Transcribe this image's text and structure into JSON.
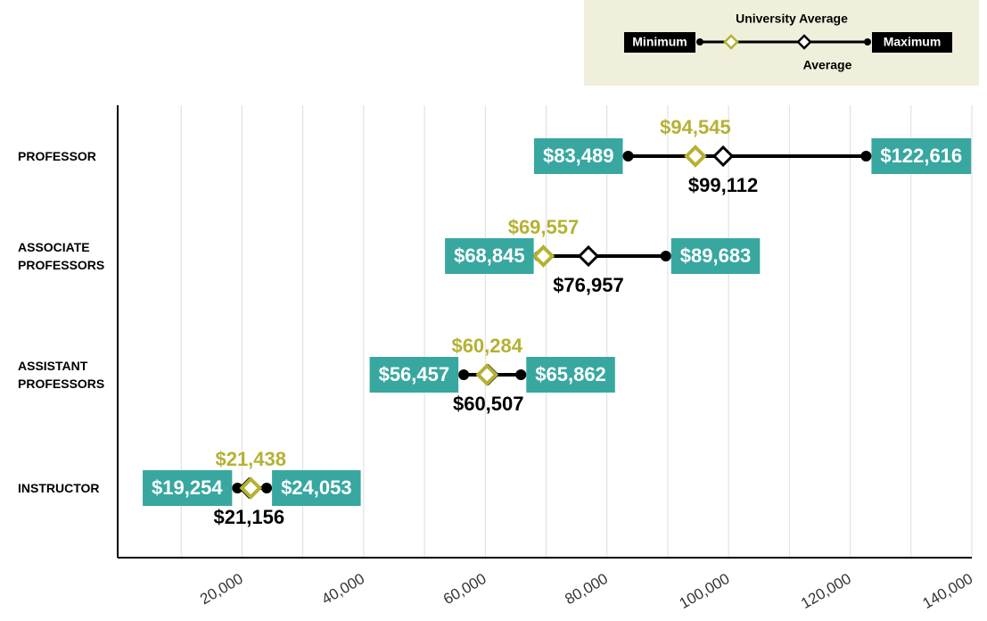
{
  "chart_data": {
    "type": "range",
    "categories": [
      "PROFESSOR",
      "ASSOCIATE PROFESSORS",
      "ASSISTANT PROFESSORS",
      "INSTRUCTOR"
    ],
    "series": [
      {
        "name": "Minimum",
        "color": "#000000",
        "values": [
          83489,
          68845,
          56457,
          19254
        ],
        "value_labels": [
          "$83,489",
          "$68,845",
          "$56,457",
          "$19,254"
        ]
      },
      {
        "name": "Maximum",
        "color": "#000000",
        "values": [
          122616,
          89683,
          65862,
          24053
        ],
        "value_labels": [
          "$122,616",
          "$89,683",
          "$65,862",
          "$24,053"
        ]
      },
      {
        "name": "Average",
        "color": "#000000",
        "values": [
          99112,
          76957,
          60507,
          21156
        ],
        "value_labels": [
          "$99,112",
          "$76,957",
          "$60,507",
          "$21,156"
        ]
      },
      {
        "name": "University Average",
        "color": "#b5b133",
        "values": [
          94545,
          69557,
          60284,
          21438
        ],
        "value_labels": [
          "$94,545",
          "$69,557",
          "$60,284",
          "$21,438"
        ]
      }
    ],
    "label_box_color": "#38a7a0",
    "xlim": [
      0,
      140000
    ],
    "xticks": [
      {
        "value": 20000,
        "label": "20,000"
      },
      {
        "value": 40000,
        "label": "40,000"
      },
      {
        "value": 60000,
        "label": "60,000"
      },
      {
        "value": 80000,
        "label": "80,000"
      },
      {
        "value": 100000,
        "label": "100,000"
      },
      {
        "value": 120000,
        "label": "120,000"
      },
      {
        "value": 140000,
        "label": "140,000"
      }
    ],
    "x_minor_ticks": [
      10000,
      30000,
      50000,
      70000,
      90000,
      110000,
      130000
    ],
    "grid": true
  }
}
